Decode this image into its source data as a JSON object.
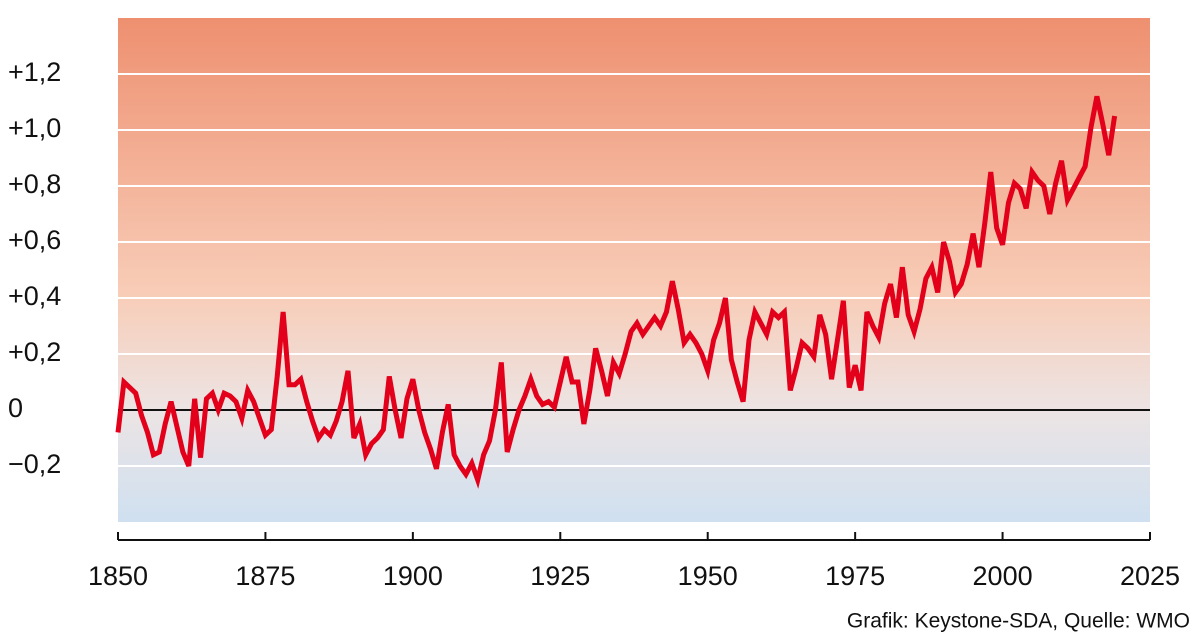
{
  "chart_data": {
    "type": "line",
    "source": "Grafik: Keystone-SDA, Quelle: WMO",
    "x": [
      1850,
      1851,
      1852,
      1853,
      1854,
      1855,
      1856,
      1857,
      1858,
      1859,
      1860,
      1861,
      1862,
      1863,
      1864,
      1865,
      1866,
      1867,
      1868,
      1869,
      1870,
      1871,
      1872,
      1873,
      1874,
      1875,
      1876,
      1877,
      1878,
      1879,
      1880,
      1881,
      1882,
      1883,
      1884,
      1885,
      1886,
      1887,
      1888,
      1889,
      1890,
      1891,
      1892,
      1893,
      1894,
      1895,
      1896,
      1897,
      1898,
      1899,
      1900,
      1901,
      1902,
      1903,
      1904,
      1905,
      1906,
      1907,
      1908,
      1909,
      1910,
      1911,
      1912,
      1913,
      1914,
      1915,
      1916,
      1917,
      1918,
      1919,
      1920,
      1921,
      1922,
      1923,
      1924,
      1925,
      1926,
      1927,
      1928,
      1929,
      1930,
      1931,
      1932,
      1933,
      1934,
      1935,
      1936,
      1937,
      1938,
      1939,
      1940,
      1941,
      1942,
      1943,
      1944,
      1945,
      1946,
      1947,
      1948,
      1949,
      1950,
      1951,
      1952,
      1953,
      1954,
      1955,
      1956,
      1957,
      1958,
      1959,
      1960,
      1961,
      1962,
      1963,
      1964,
      1965,
      1966,
      1967,
      1968,
      1969,
      1970,
      1971,
      1972,
      1973,
      1974,
      1975,
      1976,
      1977,
      1978,
      1979,
      1980,
      1981,
      1982,
      1983,
      1984,
      1985,
      1986,
      1987,
      1988,
      1989,
      1990,
      1991,
      1992,
      1993,
      1994,
      1995,
      1996,
      1997,
      1998,
      1999,
      2000,
      2001,
      2002,
      2003,
      2004,
      2005,
      2006,
      2007,
      2008,
      2009,
      2010,
      2011,
      2012,
      2013,
      2014,
      2015,
      2016,
      2017,
      2018,
      2019
    ],
    "series": [
      {
        "color": "#e2001a",
        "values": [
          -0.08,
          0.1,
          0.08,
          0.06,
          -0.02,
          -0.08,
          -0.16,
          -0.15,
          -0.05,
          0.03,
          -0.06,
          -0.15,
          -0.2,
          0.04,
          -0.17,
          0.04,
          0.06,
          0.0,
          0.06,
          0.05,
          0.03,
          -0.03,
          0.07,
          0.03,
          -0.03,
          -0.09,
          -0.07,
          0.12,
          0.35,
          0.09,
          0.09,
          0.11,
          0.03,
          -0.04,
          -0.1,
          -0.07,
          -0.09,
          -0.04,
          0.03,
          0.14,
          -0.1,
          -0.05,
          -0.16,
          -0.12,
          -0.1,
          -0.07,
          0.12,
          0.0,
          -0.1,
          0.04,
          0.11,
          0.0,
          -0.08,
          -0.14,
          -0.21,
          -0.08,
          0.02,
          -0.16,
          -0.2,
          -0.23,
          -0.19,
          -0.25,
          -0.16,
          -0.11,
          0.0,
          0.17,
          -0.15,
          -0.07,
          0.0,
          0.05,
          0.11,
          0.05,
          0.02,
          0.03,
          0.01,
          0.1,
          0.19,
          0.1,
          0.1,
          -0.05,
          0.07,
          0.22,
          0.14,
          0.05,
          0.17,
          0.13,
          0.2,
          0.28,
          0.31,
          0.27,
          0.3,
          0.33,
          0.3,
          0.35,
          0.46,
          0.36,
          0.24,
          0.27,
          0.24,
          0.2,
          0.14,
          0.25,
          0.31,
          0.4,
          0.18,
          0.1,
          0.03,
          0.25,
          0.35,
          0.31,
          0.27,
          0.35,
          0.33,
          0.35,
          0.07,
          0.15,
          0.24,
          0.22,
          0.19,
          0.34,
          0.27,
          0.11,
          0.25,
          0.39,
          0.08,
          0.16,
          0.07,
          0.35,
          0.3,
          0.26,
          0.38,
          0.45,
          0.33,
          0.51,
          0.34,
          0.28,
          0.36,
          0.47,
          0.51,
          0.42,
          0.6,
          0.53,
          0.42,
          0.45,
          0.52,
          0.63,
          0.51,
          0.67,
          0.85,
          0.65,
          0.59,
          0.74,
          0.81,
          0.79,
          0.72,
          0.85,
          0.82,
          0.8,
          0.7,
          0.81,
          0.89,
          0.75,
          0.79,
          0.83,
          0.87,
          1.01,
          1.12,
          1.02,
          0.91,
          1.05
        ]
      }
    ],
    "xlim": [
      1850,
      2025
    ],
    "xticks": [
      1850,
      1875,
      1900,
      1925,
      1950,
      1975,
      2000,
      2025
    ],
    "ylim": [
      -0.4,
      1.4
    ],
    "yticks": [
      {
        "value": -0.2,
        "label": "−0,2"
      },
      0,
      {
        "value": 0.2,
        "label": "+0,2"
      },
      {
        "value": 0.4,
        "label": "+0,4"
      },
      {
        "value": 0.6,
        "label": "+0,6"
      },
      {
        "value": 0.8,
        "label": "+0,8"
      },
      {
        "value": 1.0,
        "label": "+1,0"
      },
      {
        "value": 1.2,
        "label": "+1,2"
      }
    ],
    "grid": true
  }
}
